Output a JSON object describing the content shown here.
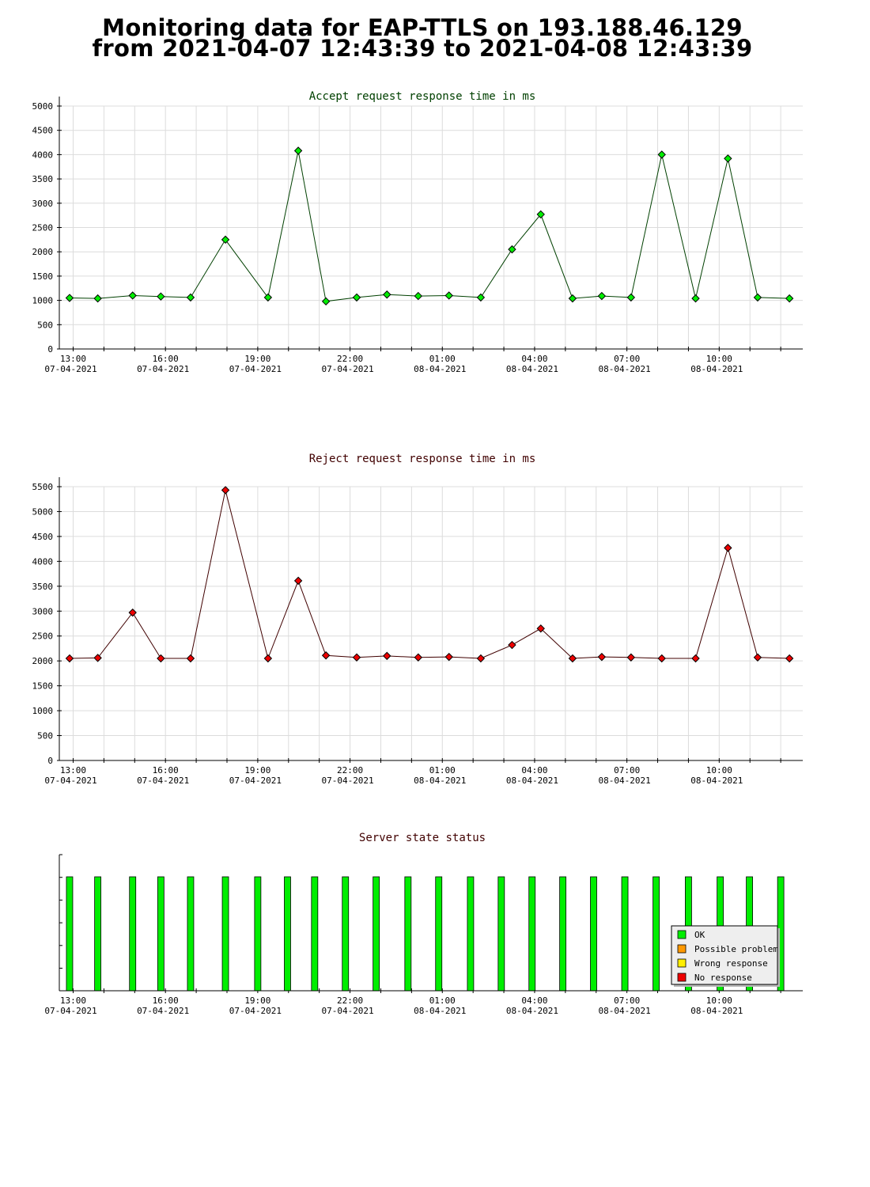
{
  "page": {
    "title_line1": "Monitoring data for EAP-TTLS on 193.188.46.129",
    "title_line2": "from 2021-04-07 12:43:39 to 2021-04-08 12:43:39"
  },
  "chart_data": [
    {
      "type": "line",
      "title": "Accept request response time in ms",
      "title_color": "#004000",
      "line_color": "#004000",
      "marker_color": "#00ee00",
      "ylim": [
        0,
        5000
      ],
      "y_ticks": [
        0,
        500,
        1000,
        1500,
        2000,
        2500,
        3000,
        3500,
        4000,
        4500,
        5000
      ],
      "xlim": [
        "2021-04-07 12:33",
        "2021-04-08 12:43"
      ],
      "x_major_ticks": [
        "13:00",
        "16:00",
        "19:00",
        "22:00",
        "01:00",
        "04:00",
        "07:00",
        "10:00"
      ],
      "x_major_dates": [
        "07-04-2021",
        "07-04-2021",
        "07-04-2021",
        "07-04-2021",
        "08-04-2021",
        "08-04-2021",
        "08-04-2021",
        "08-04-2021"
      ],
      "grid": true,
      "x": [
        "2021-04-07 12:53",
        "2021-04-07 13:48",
        "2021-04-07 14:56",
        "2021-04-07 15:51",
        "2021-04-07 16:49",
        "2021-04-07 17:57",
        "2021-04-07 19:20",
        "2021-04-07 20:19",
        "2021-04-07 21:13",
        "2021-04-07 22:13",
        "2021-04-07 23:12",
        "2021-04-08 00:13",
        "2021-04-08 01:13",
        "2021-04-08 02:15",
        "2021-04-08 03:16",
        "2021-04-08 04:12",
        "2021-04-08 05:14",
        "2021-04-08 06:11",
        "2021-04-08 07:08",
        "2021-04-08 08:08",
        "2021-04-08 09:14",
        "2021-04-08 10:17",
        "2021-04-08 11:15",
        "2021-04-08 12:17"
      ],
      "values": [
        1050,
        1040,
        1100,
        1080,
        1060,
        2250,
        1060,
        4080,
        980,
        1060,
        1120,
        1090,
        1100,
        1060,
        2050,
        2770,
        1040,
        1090,
        1060,
        4000,
        1040,
        3920,
        1060,
        1040
      ]
    },
    {
      "type": "line",
      "title": "Reject request response time in ms",
      "title_color": "#400000",
      "line_color": "#400000",
      "marker_color": "#ee0000",
      "ylim": [
        0,
        5500
      ],
      "y_ticks": [
        0,
        500,
        1000,
        1500,
        2000,
        2500,
        3000,
        3500,
        4000,
        4500,
        5000,
        5500
      ],
      "xlim": [
        "2021-04-07 12:33",
        "2021-04-08 12:43"
      ],
      "x_major_ticks": [
        "13:00",
        "16:00",
        "19:00",
        "22:00",
        "01:00",
        "04:00",
        "07:00",
        "10:00"
      ],
      "x_major_dates": [
        "07-04-2021",
        "07-04-2021",
        "07-04-2021",
        "07-04-2021",
        "08-04-2021",
        "08-04-2021",
        "08-04-2021",
        "08-04-2021"
      ],
      "grid": true,
      "x": [
        "2021-04-07 12:53",
        "2021-04-07 13:48",
        "2021-04-07 14:56",
        "2021-04-07 15:51",
        "2021-04-07 16:49",
        "2021-04-07 17:57",
        "2021-04-07 19:20",
        "2021-04-07 20:19",
        "2021-04-07 21:13",
        "2021-04-07 22:13",
        "2021-04-07 23:12",
        "2021-04-08 00:13",
        "2021-04-08 01:13",
        "2021-04-08 02:15",
        "2021-04-08 03:16",
        "2021-04-08 04:12",
        "2021-04-08 05:14",
        "2021-04-08 06:11",
        "2021-04-08 07:08",
        "2021-04-08 08:08",
        "2021-04-08 09:14",
        "2021-04-08 10:17",
        "2021-04-08 11:15",
        "2021-04-08 12:17"
      ],
      "values": [
        2050,
        2060,
        2970,
        2050,
        2050,
        5430,
        2050,
        3610,
        2110,
        2070,
        2100,
        2070,
        2080,
        2050,
        2320,
        2650,
        2050,
        2080,
        2070,
        2050,
        2050,
        4270,
        2070,
        2050
      ]
    },
    {
      "type": "bar",
      "title": "Server state status",
      "title_color": "#400000",
      "xlim": [
        "2021-04-07 12:33",
        "2021-04-08 12:43"
      ],
      "x_major_ticks": [
        "13:00",
        "16:00",
        "19:00",
        "22:00",
        "01:00",
        "04:00",
        "07:00",
        "10:00"
      ],
      "x_major_dates": [
        "07-04-2021",
        "07-04-2021",
        "07-04-2021",
        "07-04-2021",
        "08-04-2021",
        "08-04-2021",
        "08-04-2021",
        "08-04-2021"
      ],
      "grid": false,
      "x": [
        "2021-04-07 12:53",
        "2021-04-07 13:48",
        "2021-04-07 14:56",
        "2021-04-07 15:51",
        "2021-04-07 16:49",
        "2021-04-07 17:57",
        "2021-04-07 19:00",
        "2021-04-07 19:58",
        "2021-04-07 20:51",
        "2021-04-07 21:51",
        "2021-04-07 22:51",
        "2021-04-07 23:53",
        "2021-04-08 00:53",
        "2021-04-08 01:55",
        "2021-04-08 02:55",
        "2021-04-08 03:55",
        "2021-04-08 04:55",
        "2021-04-08 05:55",
        "2021-04-08 06:56",
        "2021-04-08 07:57",
        "2021-04-08 09:00",
        "2021-04-08 10:02",
        "2021-04-08 10:59",
        "2021-04-08 12:00"
      ],
      "states": [
        "OK",
        "OK",
        "OK",
        "OK",
        "OK",
        "OK",
        "OK",
        "OK",
        "OK",
        "OK",
        "OK",
        "OK",
        "OK",
        "OK",
        "OK",
        "OK",
        "OK",
        "OK",
        "OK",
        "OK",
        "OK",
        "OK",
        "OK",
        "OK"
      ],
      "legend_position": "bottom-right",
      "legend": [
        {
          "label": "OK",
          "color": "#00ee00"
        },
        {
          "label": "Possible problem",
          "color": "#ff9900"
        },
        {
          "label": "Wrong response",
          "color": "#ffee00"
        },
        {
          "label": "No response",
          "color": "#ee0000"
        }
      ]
    }
  ]
}
